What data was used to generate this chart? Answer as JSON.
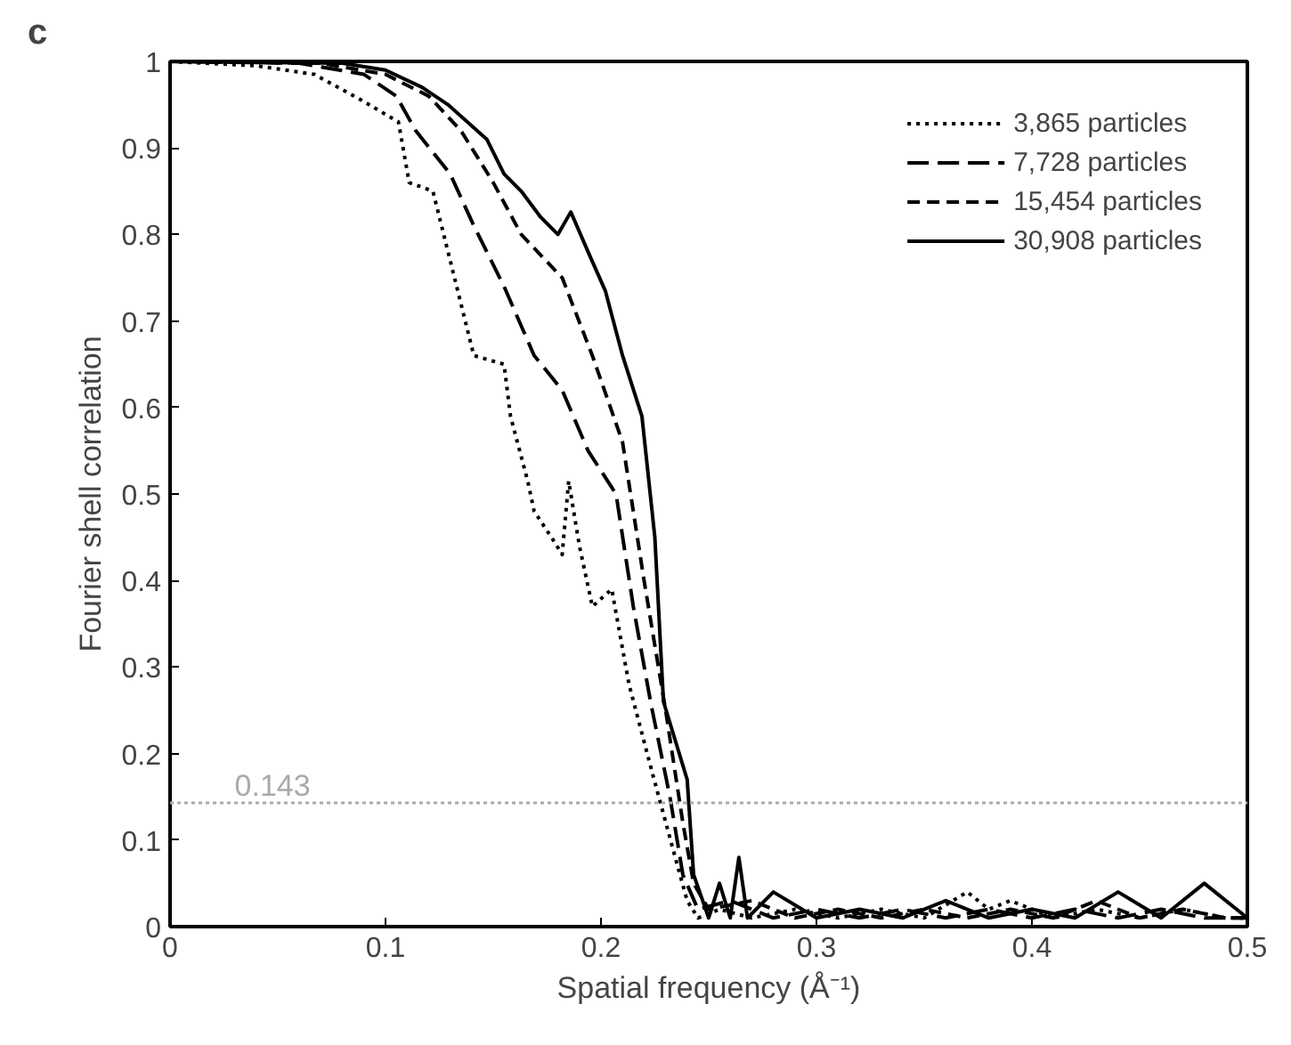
{
  "chart_data": {
    "type": "line",
    "title": "c",
    "xlabel": "Spatial frequency (Å⁻¹)",
    "ylabel": "Fourier shell correlation",
    "xlim": [
      0,
      0.5
    ],
    "ylim": [
      0,
      1
    ],
    "xticks": [
      0,
      0.1,
      0.2,
      0.3,
      0.4,
      0.5
    ],
    "yticks": [
      0,
      0.1,
      0.2,
      0.3,
      0.4,
      0.5,
      0.6,
      0.7,
      0.8,
      0.9,
      1
    ],
    "grid": false,
    "legend": "top right",
    "marker": "none",
    "ref_lines": [
      {
        "axis": "y",
        "value": 0.143,
        "label": "0.143",
        "color": "#aaaaaa",
        "line_style": "dotted"
      }
    ],
    "series": [
      {
        "name": "3,865 particles",
        "color": "#000000",
        "line_style": "dotted",
        "x": [
          0,
          0.04,
          0.067,
          0.089,
          0.106,
          0.111,
          0.122,
          0.13,
          0.141,
          0.155,
          0.158,
          0.166,
          0.169,
          0.177,
          0.182,
          0.185,
          0.19,
          0.196,
          0.205,
          0.213,
          0.224,
          0.235,
          0.24,
          0.245,
          0.255,
          0.27,
          0.29,
          0.31,
          0.33,
          0.35,
          0.37,
          0.38,
          0.39,
          0.41,
          0.43,
          0.45,
          0.47,
          0.49,
          0.5
        ],
        "values": [
          1,
          0.995,
          0.985,
          0.955,
          0.93,
          0.86,
          0.85,
          0.77,
          0.66,
          0.65,
          0.59,
          0.515,
          0.48,
          0.45,
          0.43,
          0.515,
          0.44,
          0.37,
          0.39,
          0.28,
          0.176,
          0.075,
          0.03,
          0.01,
          0.02,
          0.01,
          0.02,
          0.01,
          0.02,
          0.01,
          0.04,
          0.02,
          0.03,
          0.01,
          0.02,
          0.01,
          0.02,
          0.01,
          0.01
        ]
      },
      {
        "name": "7,728 particles",
        "color": "#000000",
        "line_style": "dashed",
        "x": [
          0,
          0.06,
          0.09,
          0.105,
          0.114,
          0.13,
          0.141,
          0.155,
          0.169,
          0.182,
          0.194,
          0.207,
          0.215,
          0.223,
          0.232,
          0.238,
          0.245,
          0.26,
          0.28,
          0.3,
          0.32,
          0.34,
          0.36,
          0.38,
          0.4,
          0.42,
          0.44,
          0.46,
          0.48,
          0.5
        ],
        "values": [
          1,
          0.998,
          0.985,
          0.96,
          0.92,
          0.87,
          0.81,
          0.74,
          0.66,
          0.62,
          0.55,
          0.5,
          0.37,
          0.26,
          0.15,
          0.06,
          0.02,
          0.03,
          0.01,
          0.02,
          0.01,
          0.02,
          0.01,
          0.02,
          0.01,
          0.02,
          0.01,
          0.02,
          0.01,
          0.01
        ]
      },
      {
        "name": "15,454 particles",
        "color": "#000000",
        "line_style": "dashed",
        "x": [
          0,
          0.07,
          0.1,
          0.12,
          0.135,
          0.15,
          0.163,
          0.182,
          0.196,
          0.21,
          0.22,
          0.23,
          0.238,
          0.243,
          0.25,
          0.27,
          0.29,
          0.31,
          0.33,
          0.35,
          0.37,
          0.39,
          0.41,
          0.43,
          0.45,
          0.47,
          0.49,
          0.5
        ],
        "values": [
          1,
          0.998,
          0.985,
          0.96,
          0.92,
          0.86,
          0.8,
          0.75,
          0.66,
          0.56,
          0.4,
          0.25,
          0.12,
          0.05,
          0.02,
          0.03,
          0.01,
          0.02,
          0.01,
          0.02,
          0.01,
          0.02,
          0.01,
          0.03,
          0.01,
          0.02,
          0.01,
          0.01
        ]
      },
      {
        "name": "30,908 particles",
        "color": "#000000",
        "line_style": "solid",
        "x": [
          0,
          0.08,
          0.1,
          0.117,
          0.129,
          0.147,
          0.155,
          0.163,
          0.172,
          0.18,
          0.186,
          0.194,
          0.202,
          0.21,
          0.219,
          0.225,
          0.229,
          0.24,
          0.243,
          0.25,
          0.255,
          0.26,
          0.264,
          0.268,
          0.28,
          0.3,
          0.32,
          0.34,
          0.36,
          0.38,
          0.4,
          0.42,
          0.44,
          0.46,
          0.48,
          0.5
        ],
        "values": [
          1,
          0.998,
          0.99,
          0.97,
          0.95,
          0.91,
          0.87,
          0.85,
          0.82,
          0.8,
          0.826,
          0.78,
          0.735,
          0.66,
          0.59,
          0.45,
          0.26,
          0.17,
          0.06,
          0.01,
          0.05,
          0.01,
          0.08,
          0.01,
          0.04,
          0.01,
          0.02,
          0.01,
          0.03,
          0.01,
          0.02,
          0.01,
          0.04,
          0.01,
          0.05,
          0.01
        ]
      }
    ]
  }
}
